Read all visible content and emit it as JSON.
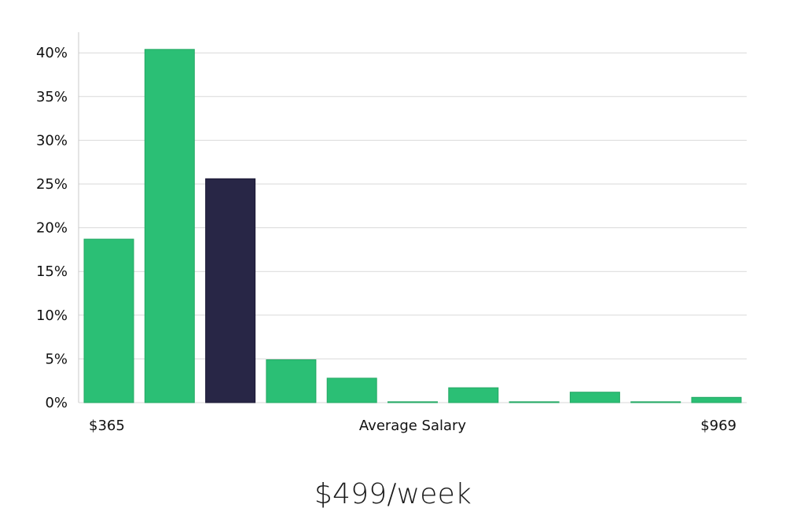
{
  "headline": "$499/week",
  "colors": {
    "bar": "#2bbf75",
    "bar_border": "#25a865",
    "highlight": "#282646",
    "grid": "#d9d9d9",
    "axis": "#c8c8c8"
  },
  "chart_data": {
    "type": "bar",
    "xlabel": "Average Salary",
    "x_min_label": "$365",
    "x_max_label": "$969",
    "ylim": [
      0,
      42
    ],
    "yticks": [
      0,
      5,
      10,
      15,
      20,
      25,
      30,
      35,
      40
    ],
    "ytick_labels": [
      "0%",
      "5%",
      "10%",
      "15%",
      "20%",
      "25%",
      "30%",
      "35%",
      "40%"
    ],
    "grid": true,
    "values": [
      18.7,
      40.4,
      25.6,
      4.9,
      2.8,
      0.1,
      1.7,
      0.1,
      1.2,
      0.1,
      0.6
    ],
    "highlight_index": 2
  }
}
